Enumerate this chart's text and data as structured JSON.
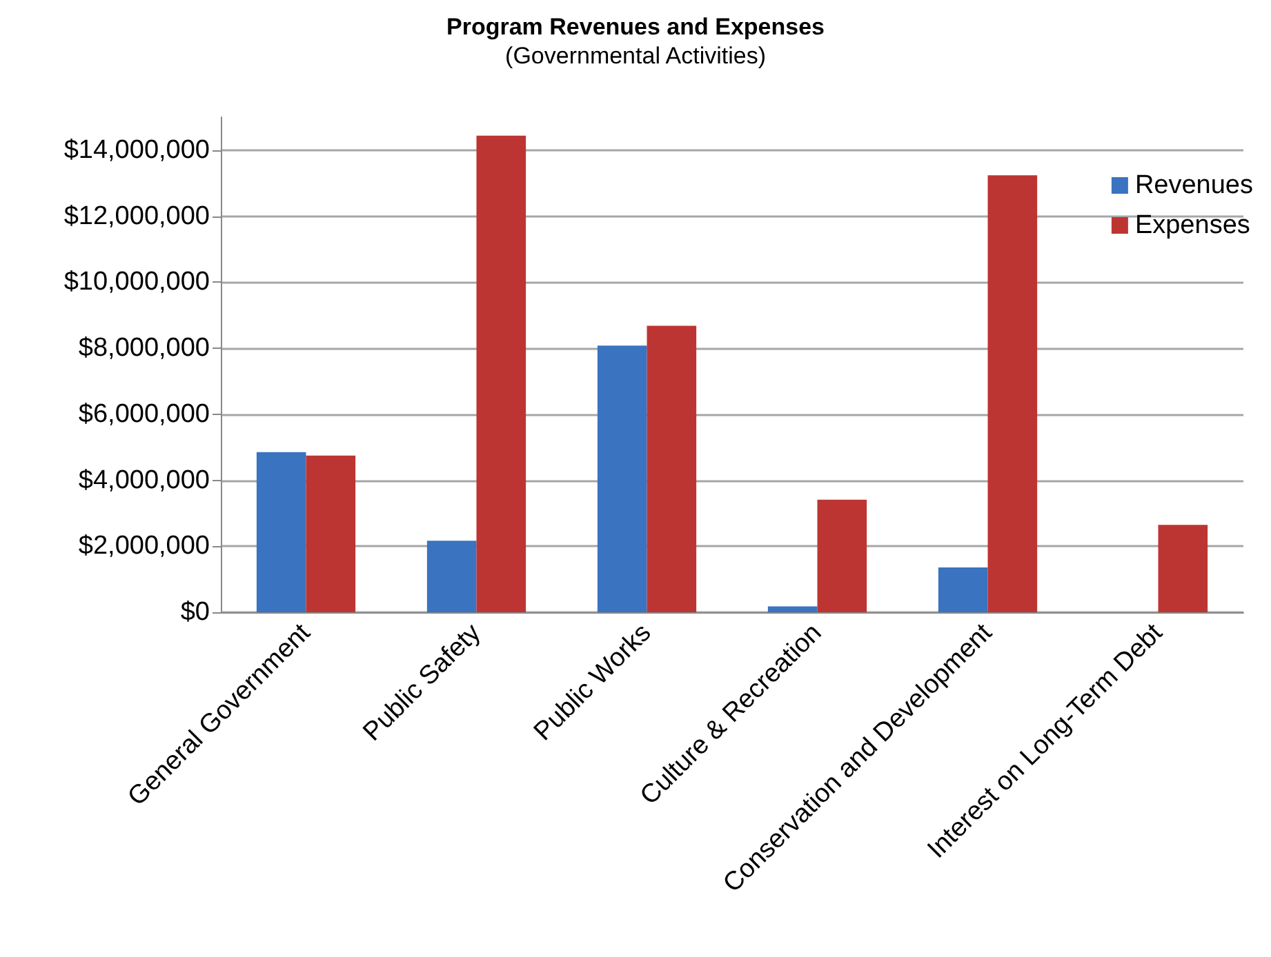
{
  "chart_data": {
    "type": "bar",
    "title": "Program Revenues and Expenses",
    "subtitle": "(Governmental Activities)",
    "categories": [
      "General Government",
      "Public Safety",
      "Public Works",
      "Culture & Recreation",
      "Conservation and Development",
      "Interest on Long-Term Debt"
    ],
    "series": [
      {
        "name": "Revenues",
        "color": "#3a73bf",
        "values": [
          4850000,
          2170000,
          8080000,
          180000,
          1360000,
          0
        ]
      },
      {
        "name": "Expenses",
        "color": "#bd3532",
        "values": [
          4750000,
          14440000,
          8680000,
          3410000,
          13240000,
          2650000
        ]
      }
    ],
    "ylim": [
      0,
      15000000
    ],
    "yticks": [
      {
        "value": 0,
        "label": "$0"
      },
      {
        "value": 2000000,
        "label": "$2,000,000"
      },
      {
        "value": 4000000,
        "label": "$4,000,000"
      },
      {
        "value": 6000000,
        "label": "$6,000,000"
      },
      {
        "value": 8000000,
        "label": "$8,000,000"
      },
      {
        "value": 10000000,
        "label": "$10,000,000"
      },
      {
        "value": 12000000,
        "label": "$12,000,000"
      },
      {
        "value": 14000000,
        "label": "$14,000,000"
      }
    ],
    "grid": "y",
    "legend": "top right"
  }
}
